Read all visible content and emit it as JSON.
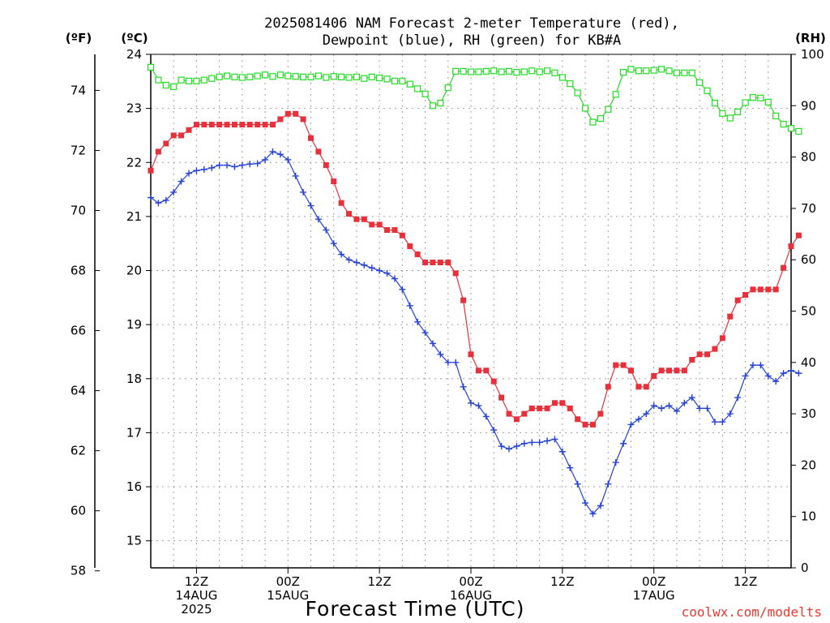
{
  "chart_data": {
    "type": "line",
    "title_line1": "2025081406 NAM Forecast 2-meter Temperature (red),",
    "title_line2": "Dewpoint (blue), RH (green) for KB#A",
    "xlabel": "Forecast Time (UTC)",
    "credit": "coolwx.com/modelts",
    "units": {
      "fahrenheit": "(ºF)",
      "celsius": "(ºC)",
      "rh": "(RH)"
    },
    "x_hours_range": [
      0,
      84
    ],
    "x_ticks": [
      {
        "hour": 6,
        "lines": [
          "12Z",
          "14AUG",
          "2025"
        ]
      },
      {
        "hour": 18,
        "lines": [
          "00Z",
          "15AUG"
        ]
      },
      {
        "hour": 30,
        "lines": [
          "12Z"
        ]
      },
      {
        "hour": 42,
        "lines": [
          "00Z",
          "16AUG"
        ]
      },
      {
        "hour": 54,
        "lines": [
          "12Z"
        ]
      },
      {
        "hour": 66,
        "lines": [
          "00Z",
          "17AUG"
        ]
      },
      {
        "hour": 78,
        "lines": [
          "12Z"
        ]
      }
    ],
    "celsius_axis": {
      "range": [
        14.5,
        24.0
      ],
      "ticks": [
        "15",
        "16",
        "17",
        "18",
        "19",
        "20",
        "21",
        "22",
        "23",
        "24"
      ]
    },
    "fahrenheit_axis": {
      "ticks": [
        "58",
        "60",
        "62",
        "64",
        "66",
        "68",
        "70",
        "72",
        "74"
      ]
    },
    "rh_axis": {
      "range": [
        0,
        100
      ],
      "ticks": [
        "0",
        "10",
        "20",
        "30",
        "40",
        "50",
        "60",
        "70",
        "80",
        "90",
        "100"
      ]
    },
    "colors": {
      "temperature": "#e8303a",
      "dewpoint": "#2340d8",
      "rh": "#22dd22",
      "grid": "#a0a0a0"
    },
    "series": [
      {
        "name": "Temperature (red)",
        "axis": "celsius",
        "marker": "filled-square",
        "values": [
          21.85,
          22.2,
          22.35,
          22.5,
          22.5,
          22.6,
          22.7,
          22.7,
          22.7,
          22.7,
          22.7,
          22.7,
          22.7,
          22.7,
          22.7,
          22.7,
          22.7,
          22.8,
          22.9,
          22.9,
          22.8,
          22.45,
          22.2,
          21.95,
          21.65,
          21.25,
          21.05,
          20.95,
          20.95,
          20.85,
          20.85,
          20.75,
          20.75,
          20.65,
          20.45,
          20.3,
          20.15,
          20.15,
          20.15,
          20.15,
          19.95,
          19.45,
          18.45,
          18.15,
          18.15,
          17.95,
          17.65,
          17.35,
          17.25,
          17.35,
          17.45,
          17.45,
          17.45,
          17.55,
          17.55,
          17.45,
          17.25,
          17.15,
          17.15,
          17.35,
          17.85,
          18.25,
          18.25,
          18.15,
          17.85,
          17.85,
          18.05,
          18.15,
          18.15,
          18.15,
          18.15,
          18.35,
          18.45,
          18.45,
          18.55,
          18.75,
          19.15,
          19.45,
          19.55,
          19.65,
          19.65,
          19.65,
          19.65,
          20.05,
          20.45,
          20.65
        ]
      },
      {
        "name": "Dewpoint (blue)",
        "axis": "celsius",
        "marker": "plus",
        "values": [
          21.35,
          21.25,
          21.3,
          21.45,
          21.65,
          21.8,
          21.85,
          21.87,
          21.9,
          21.95,
          21.95,
          21.92,
          21.95,
          21.97,
          21.98,
          22.05,
          22.2,
          22.15,
          22.05,
          21.75,
          21.45,
          21.2,
          20.95,
          20.75,
          20.5,
          20.3,
          20.2,
          20.15,
          20.1,
          20.05,
          20.0,
          19.95,
          19.85,
          19.65,
          19.35,
          19.05,
          18.85,
          18.65,
          18.45,
          18.3,
          18.3,
          17.85,
          17.55,
          17.5,
          17.3,
          17.05,
          16.75,
          16.7,
          16.75,
          16.8,
          16.82,
          16.82,
          16.85,
          16.88,
          16.65,
          16.35,
          16.05,
          15.7,
          15.5,
          15.65,
          16.05,
          16.45,
          16.8,
          17.15,
          17.25,
          17.35,
          17.5,
          17.45,
          17.5,
          17.4,
          17.55,
          17.65,
          17.45,
          17.45,
          17.2,
          17.2,
          17.35,
          17.65,
          18.05,
          18.25,
          18.25,
          18.05,
          17.95,
          18.1,
          18.15,
          18.1
        ]
      },
      {
        "name": "RH (green)",
        "axis": "rh",
        "marker": "open-square",
        "values": [
          97.5,
          95,
          94,
          93.7,
          95,
          94.8,
          94.8,
          95,
          95.3,
          95.6,
          95.8,
          95.6,
          95.5,
          95.6,
          95.8,
          96,
          95.7,
          96,
          95.8,
          95.7,
          95.6,
          95.6,
          95.8,
          95.5,
          95.7,
          95.6,
          95.5,
          95.6,
          95.3,
          95.6,
          95.4,
          95.2,
          94.8,
          94.8,
          94.2,
          93.3,
          92.3,
          90,
          90.5,
          93.5,
          96.7,
          96.7,
          96.6,
          96.6,
          96.7,
          96.8,
          96.6,
          96.7,
          96.5,
          96.6,
          96.8,
          96.6,
          96.8,
          96.4,
          95.5,
          94.3,
          92.5,
          89.5,
          86.8,
          87.5,
          89.3,
          92.2,
          96.5,
          97.1,
          96.8,
          96.8,
          96.9,
          97.1,
          96.8,
          96.4,
          96.4,
          96.4,
          94.5,
          92.9,
          90.5,
          88.5,
          87.6,
          88.8,
          90.6,
          91.6,
          91.5,
          90.7,
          88,
          86.4,
          85.6,
          85
        ]
      }
    ]
  }
}
